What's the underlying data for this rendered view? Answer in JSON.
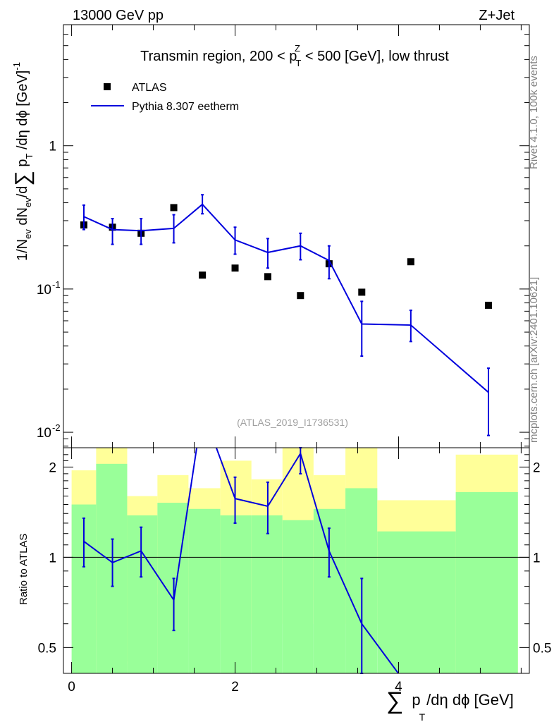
{
  "header": {
    "left_label": "13000 GeV pp",
    "right_label": "Z+Jet"
  },
  "side_labels": {
    "rivet": "Rivet 4.1.0,  100k events",
    "source": "mcplots.cern.ch [arXiv:2401.10621]"
  },
  "colors": {
    "mc_line": "#0000dd",
    "band_inner": "#99ff99",
    "band_outer": "#ffff99",
    "data_marker": "#000000"
  },
  "chart_data": [
    {
      "type": "scatter",
      "panel": "main",
      "title": "Transmin region, 200 < p",
      "title_sup": "Z",
      "title_sub": "T",
      "title_rest": " < 500 [GeV], low thrust",
      "watermark": "(ATLAS_2019_I1736531)",
      "ylabel": "1/N_ev dN_ev/d∑p_T/dη dφ [GeV]^-1",
      "yscale": "log",
      "ylim": [
        0.0078,
        7.0
      ],
      "xlim": [
        -0.1,
        5.6
      ],
      "ytick_labels": [
        "1",
        "10^-1",
        "10^-2"
      ],
      "legend": {
        "position": "top-left",
        "data_label": "ATLAS",
        "mc_label": "Pythia 8.307 eetherm"
      },
      "series": [
        {
          "name": "ATLAS",
          "style": "markers",
          "x": [
            0.15,
            0.5,
            0.85,
            1.25,
            1.6,
            2.0,
            2.4,
            2.8,
            3.15,
            3.55,
            4.15,
            5.1
          ],
          "values": [
            0.28,
            0.27,
            0.245,
            0.37,
            0.125,
            0.14,
            0.122,
            0.09,
            0.15,
            0.095,
            0.155,
            0.077
          ]
        },
        {
          "name": "Pythia 8.307 eetherm",
          "style": "line",
          "x": [
            0.15,
            0.5,
            0.85,
            1.25,
            1.6,
            2.0,
            2.4,
            2.8,
            3.15,
            3.55,
            3.85,
            4.15,
            5.1
          ],
          "values": [
            0.32,
            0.26,
            0.255,
            0.265,
            0.39,
            0.22,
            0.18,
            0.2,
            0.158,
            0.057,
            0.0565,
            0.056,
            0.019
          ],
          "err_x": [
            0.15,
            0.5,
            0.85,
            1.25,
            1.6,
            2.0,
            2.4,
            2.8,
            3.15,
            3.55,
            4.15,
            5.1
          ],
          "err_lo": [
            0.26,
            0.205,
            0.205,
            0.21,
            0.335,
            0.175,
            0.14,
            0.16,
            0.118,
            0.034,
            0.043,
            0.0095
          ],
          "err_hi": [
            0.385,
            0.31,
            0.31,
            0.33,
            0.455,
            0.27,
            0.225,
            0.245,
            0.2,
            0.082,
            0.071,
            0.028
          ]
        }
      ]
    },
    {
      "type": "line",
      "panel": "ratio",
      "ylabel": "Ratio to ATLAS",
      "xlabel": "∑p_T/dη dφ [GeV]",
      "yscale": "log",
      "ylim": [
        0.41,
        2.32
      ],
      "xlim": [
        -0.1,
        5.6
      ],
      "yticks": [
        0.5,
        1,
        2
      ],
      "ytick_labels": [
        "0.5",
        "1",
        "2"
      ],
      "xticks": [
        0,
        2,
        4
      ],
      "xtick_labels": [
        "0",
        "2",
        "4"
      ],
      "reference_line": 1,
      "bands": {
        "bins": [
          [
            0.0,
            0.3
          ],
          [
            0.3,
            0.68
          ],
          [
            0.68,
            1.05
          ],
          [
            1.05,
            1.43
          ],
          [
            1.43,
            1.82
          ],
          [
            1.82,
            2.2
          ],
          [
            2.2,
            2.58
          ],
          [
            2.58,
            2.96
          ],
          [
            2.96,
            3.35
          ],
          [
            3.35,
            3.74
          ],
          [
            3.74,
            4.7
          ],
          [
            4.7,
            5.46
          ]
        ],
        "inner_lo": [
          0.1,
          0.1,
          0.1,
          0.1,
          0.1,
          0.1,
          0.1,
          0.1,
          0.1,
          0.1,
          0.1,
          0.1
        ],
        "inner_hi": [
          1.5,
          2.05,
          1.38,
          1.52,
          1.45,
          1.38,
          1.38,
          1.33,
          1.45,
          1.7,
          1.22,
          1.65
        ],
        "outer_lo": [
          0.53,
          0.1,
          0.44,
          0.75,
          0.56,
          0.57,
          0.6,
          0.72,
          0.6,
          0.6,
          0.8,
          0.1
        ],
        "outer_hi": [
          1.95,
          2.5,
          1.6,
          1.88,
          1.7,
          2.1,
          1.82,
          2.5,
          1.88,
          2.5,
          1.55,
          2.2
        ],
        "white_lo": [
          0.1,
          0.1,
          0.45,
          0.1,
          0.1,
          0.1,
          0.1,
          0.1,
          0.1,
          0.1,
          0.53,
          0.1
        ]
      },
      "series": [
        {
          "name": "Pythia 8.307 eetherm / ATLAS",
          "x": [
            0.15,
            0.5,
            0.85,
            1.25,
            1.6,
            2.0,
            2.4,
            2.8,
            3.15,
            3.55,
            4.15
          ],
          "values": [
            1.13,
            0.96,
            1.05,
            0.72,
            3.1,
            1.57,
            1.48,
            2.22,
            1.05,
            0.6,
            0.36
          ],
          "err_x": [
            0.15,
            0.5,
            0.85,
            1.25,
            2.0,
            2.4,
            2.8,
            3.15,
            3.55
          ],
          "err_lo": [
            0.93,
            0.8,
            0.86,
            0.57,
            1.3,
            1.2,
            1.9,
            0.86,
            0.36
          ],
          "err_hi": [
            1.35,
            1.15,
            1.26,
            0.85,
            1.85,
            1.78,
            2.6,
            1.25,
            0.85
          ]
        }
      ]
    }
  ]
}
